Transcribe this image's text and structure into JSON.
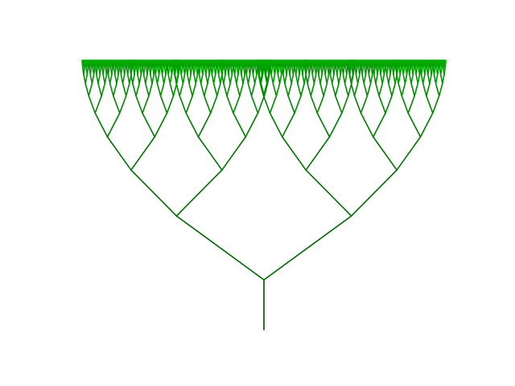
{
  "figure": {
    "type": "fractal-tree",
    "depth": 10,
    "branching_factor": 2,
    "colors": {
      "trunk": "#004d00",
      "branches_low": "#006400",
      "branches_high": "#00aa00",
      "background": "#ffffff"
    }
  }
}
